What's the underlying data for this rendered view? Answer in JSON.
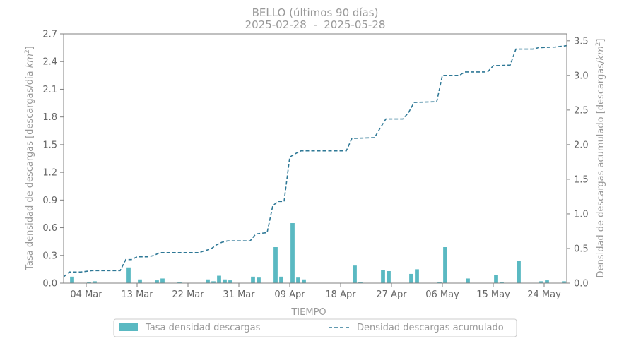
{
  "chart_data": {
    "type": "bar",
    "title": "BELLO (últimos 90 días)",
    "subtitle": "2025-02-28  -  2025-05-28",
    "xlabel": "TIEMPO",
    "ylabel_left": "Tasa densidad de descargas [descargas/día km²]",
    "ylabel_left_parts": [
      "Tasa densidad de descargas [descargas/día ",
      "km",
      "2",
      "]"
    ],
    "ylabel_right": "Densidad de descargas acumulado [descargas/km²]",
    "ylabel_right_parts": [
      "Densidad de descargas acumulado [descargas/",
      "km",
      "2",
      "]"
    ],
    "xlim": [
      "2025-02-28",
      "2025-05-28"
    ],
    "ylim_left": [
      0,
      2.7
    ],
    "ylim_right": [
      0,
      3.6
    ],
    "yticks_left": [
      "0.0",
      "0.3",
      "0.6",
      "0.9",
      "1.2",
      "1.5",
      "1.8",
      "2.1",
      "2.4",
      "2.7"
    ],
    "yticks_right": [
      "0.0",
      "0.5",
      "1.0",
      "1.5",
      "2.0",
      "2.5",
      "3.0",
      "3.5"
    ],
    "xticks": [
      {
        "date": "2025-03-04",
        "label": "04 Mar"
      },
      {
        "date": "2025-03-13",
        "label": "13 Mar"
      },
      {
        "date": "2025-03-22",
        "label": "22 Mar"
      },
      {
        "date": "2025-03-31",
        "label": "31 Mar"
      },
      {
        "date": "2025-04-09",
        "label": "09 Apr"
      },
      {
        "date": "2025-04-18",
        "label": "18 Apr"
      },
      {
        "date": "2025-04-27",
        "label": "27 Apr"
      },
      {
        "date": "2025-05-06",
        "label": "06 May"
      },
      {
        "date": "2025-05-15",
        "label": "15 May"
      },
      {
        "date": "2025-05-24",
        "label": "24 May"
      }
    ],
    "grid": false,
    "legend_position": "bottom-center",
    "series": [
      {
        "name": "Tasa densidad descargas",
        "type": "bar",
        "axis": "left",
        "color": "#5ab9c2",
        "points": [
          [
            "2025-03-01",
            0.07
          ],
          [
            "2025-03-04",
            0.01
          ],
          [
            "2025-03-05",
            0.02
          ],
          [
            "2025-03-11",
            0.17
          ],
          [
            "2025-03-13",
            0.04
          ],
          [
            "2025-03-16",
            0.03
          ],
          [
            "2025-03-17",
            0.05
          ],
          [
            "2025-03-20",
            0.01
          ],
          [
            "2025-03-25",
            0.04
          ],
          [
            "2025-03-26",
            0.02
          ],
          [
            "2025-03-27",
            0.08
          ],
          [
            "2025-03-28",
            0.04
          ],
          [
            "2025-03-29",
            0.03
          ],
          [
            "2025-04-02",
            0.07
          ],
          [
            "2025-04-03",
            0.06
          ],
          [
            "2025-04-06",
            0.39
          ],
          [
            "2025-04-07",
            0.07
          ],
          [
            "2025-04-09",
            0.65
          ],
          [
            "2025-04-10",
            0.06
          ],
          [
            "2025-04-11",
            0.04
          ],
          [
            "2025-04-20",
            0.19
          ],
          [
            "2025-04-21",
            0.01
          ],
          [
            "2025-04-25",
            0.14
          ],
          [
            "2025-04-26",
            0.13
          ],
          [
            "2025-04-30",
            0.1
          ],
          [
            "2025-05-01",
            0.15
          ],
          [
            "2025-05-05",
            0.01
          ],
          [
            "2025-05-06",
            0.39
          ],
          [
            "2025-05-10",
            0.05
          ],
          [
            "2025-05-15",
            0.09
          ],
          [
            "2025-05-16",
            0.01
          ],
          [
            "2025-05-19",
            0.24
          ],
          [
            "2025-05-23",
            0.02
          ],
          [
            "2025-05-24",
            0.03
          ],
          [
            "2025-05-27",
            0.02
          ]
        ]
      },
      {
        "name": "Densidad descargas acumulado",
        "type": "line",
        "axis": "right",
        "style": "dashed",
        "color": "#2e7896",
        "points": [
          [
            "2025-02-28",
            0.09
          ],
          [
            "2025-03-01",
            0.16
          ],
          [
            "2025-03-03",
            0.16
          ],
          [
            "2025-03-04",
            0.17
          ],
          [
            "2025-03-05",
            0.18
          ],
          [
            "2025-03-10",
            0.18
          ],
          [
            "2025-03-11",
            0.34
          ],
          [
            "2025-03-12",
            0.34
          ],
          [
            "2025-03-13",
            0.38
          ],
          [
            "2025-03-15",
            0.38
          ],
          [
            "2025-03-16",
            0.4
          ],
          [
            "2025-03-17",
            0.44
          ],
          [
            "2025-03-24",
            0.44
          ],
          [
            "2025-03-25",
            0.47
          ],
          [
            "2025-03-26",
            0.49
          ],
          [
            "2025-03-27",
            0.55
          ],
          [
            "2025-03-28",
            0.59
          ],
          [
            "2025-03-29",
            0.61
          ],
          [
            "2025-04-02",
            0.61
          ],
          [
            "2025-04-03",
            0.71
          ],
          [
            "2025-04-05",
            0.73
          ],
          [
            "2025-04-06",
            1.12
          ],
          [
            "2025-04-07",
            1.18
          ],
          [
            "2025-04-08",
            1.18
          ],
          [
            "2025-04-09",
            1.82
          ],
          [
            "2025-04-10",
            1.87
          ],
          [
            "2025-04-11",
            1.91
          ],
          [
            "2025-04-19",
            1.91
          ],
          [
            "2025-04-20",
            2.09
          ],
          [
            "2025-04-24",
            2.1
          ],
          [
            "2025-04-25",
            2.24
          ],
          [
            "2025-04-26",
            2.37
          ],
          [
            "2025-04-29",
            2.37
          ],
          [
            "2025-04-30",
            2.46
          ],
          [
            "2025-05-01",
            2.61
          ],
          [
            "2025-05-05",
            2.62
          ],
          [
            "2025-05-06",
            3.0
          ],
          [
            "2025-05-09",
            3.0
          ],
          [
            "2025-05-10",
            3.05
          ],
          [
            "2025-05-14",
            3.05
          ],
          [
            "2025-05-15",
            3.14
          ],
          [
            "2025-05-18",
            3.15
          ],
          [
            "2025-05-19",
            3.38
          ],
          [
            "2025-05-22",
            3.38
          ],
          [
            "2025-05-23",
            3.4
          ],
          [
            "2025-05-26",
            3.41
          ],
          [
            "2025-05-28",
            3.43
          ]
        ]
      }
    ]
  }
}
